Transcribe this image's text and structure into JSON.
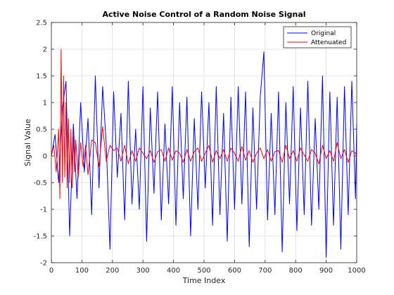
{
  "chart_data": {
    "type": "line",
    "title": "Active Noise Control of a Random Noise Signal",
    "xlabel": "Time Index",
    "ylabel": "Signal Value",
    "xlim": [
      0,
      1000
    ],
    "ylim": [
      -2,
      2.5
    ],
    "grid": true,
    "legend_position": "top-right",
    "x_ticks": [
      0,
      100,
      200,
      300,
      400,
      500,
      600,
      700,
      800,
      900,
      1000
    ],
    "x_tick_labels": [
      "0",
      "100",
      "200",
      "300",
      "400",
      "500",
      "600",
      "700",
      "800",
      "900",
      "1000"
    ],
    "y_ticks": [
      -2,
      -1.5,
      -1,
      -0.5,
      0,
      0.5,
      1,
      1.5,
      2,
      2.5
    ],
    "y_tick_labels": [
      "-2",
      "-1.5",
      "-1",
      "-0.5",
      "0",
      "0.5",
      "1",
      "1.5",
      "2",
      "2.5"
    ],
    "series": [
      {
        "name": "Original",
        "color": "#0000ff",
        "x": [
          0,
          12,
          24,
          36,
          48,
          60,
          72,
          84,
          96,
          108,
          120,
          132,
          144,
          156,
          168,
          180,
          192,
          204,
          216,
          228,
          240,
          252,
          264,
          276,
          288,
          300,
          312,
          324,
          336,
          348,
          360,
          372,
          384,
          396,
          408,
          420,
          432,
          444,
          456,
          468,
          480,
          492,
          504,
          516,
          528,
          540,
          552,
          564,
          576,
          588,
          600,
          612,
          624,
          636,
          648,
          660,
          672,
          684,
          696,
          708,
          720,
          732,
          744,
          756,
          768,
          780,
          792,
          804,
          816,
          828,
          840,
          852,
          864,
          876,
          888,
          900,
          912,
          924,
          936,
          948,
          960,
          972,
          984,
          996,
          1000
        ],
        "y": [
          0.0,
          0.4,
          -0.5,
          0.9,
          1.4,
          -1.5,
          0.6,
          -0.8,
          1.0,
          -0.3,
          0.7,
          -1.1,
          1.5,
          -0.6,
          1.3,
          0.2,
          -1.75,
          1.2,
          -0.4,
          0.8,
          -1.2,
          1.4,
          -0.9,
          0.5,
          -1.0,
          1.3,
          -1.6,
          0.9,
          -0.7,
          1.2,
          -1.2,
          0.6,
          -0.9,
          1.3,
          -1.3,
          1.0,
          -0.8,
          1.1,
          -1.5,
          0.7,
          -1.0,
          1.2,
          -0.6,
          1.0,
          -1.3,
          1.3,
          -1.1,
          0.8,
          -1.6,
          1.1,
          -1.0,
          1.3,
          -0.9,
          1.2,
          -1.7,
          0.9,
          -1.0,
          1.1,
          1.95,
          -1.2,
          0.8,
          -1.1,
          1.2,
          -1.8,
          1.0,
          -0.9,
          1.3,
          -1.4,
          0.9,
          -1.1,
          1.4,
          -1.3,
          0.7,
          -1.0,
          1.5,
          -1.9,
          1.2,
          -1.3,
          1.1,
          -1.75,
          1.3,
          -1.1,
          1.4,
          -0.8,
          0.6
        ]
      },
      {
        "name": "Attenuated",
        "color": "#ff0000",
        "x": [
          0,
          8,
          16,
          24,
          28,
          32,
          36,
          40,
          44,
          48,
          52,
          56,
          60,
          64,
          68,
          72,
          76,
          80,
          88,
          96,
          104,
          112,
          120,
          132,
          144,
          156,
          168,
          180,
          192,
          204,
          216,
          228,
          240,
          252,
          264,
          276,
          288,
          300,
          312,
          324,
          336,
          348,
          360,
          372,
          384,
          396,
          408,
          420,
          432,
          444,
          456,
          468,
          480,
          492,
          504,
          516,
          528,
          540,
          552,
          564,
          576,
          588,
          600,
          612,
          624,
          636,
          648,
          660,
          672,
          684,
          696,
          708,
          720,
          732,
          744,
          756,
          768,
          780,
          792,
          804,
          816,
          828,
          840,
          852,
          864,
          876,
          888,
          900,
          912,
          924,
          936,
          948,
          960,
          972,
          984,
          996,
          1000
        ],
        "y": [
          0.0,
          0.2,
          -0.3,
          0.5,
          -0.8,
          2.0,
          -0.5,
          1.5,
          -0.4,
          1.0,
          -0.6,
          0.7,
          -0.5,
          0.5,
          -0.6,
          0.4,
          -0.3,
          0.3,
          -0.4,
          0.25,
          -0.2,
          0.2,
          -0.35,
          0.3,
          0.25,
          -0.2,
          0.55,
          -0.1,
          0.2,
          0.1,
          0.15,
          -0.1,
          0.2,
          -0.15,
          0.1,
          -0.1,
          0.15,
          0.05,
          -0.05,
          0.1,
          -0.12,
          0.08,
          0.12,
          -0.1,
          0.15,
          -0.08,
          0.1,
          0.05,
          -0.12,
          0.12,
          -0.1,
          0.08,
          0.15,
          -0.1,
          0.05,
          0.2,
          -0.12,
          0.1,
          -0.05,
          0.12,
          -0.1,
          0.15,
          0.05,
          -0.1,
          0.18,
          -0.08,
          0.1,
          -0.12,
          0.05,
          0.15,
          -0.05,
          0.12,
          -0.1,
          0.08,
          0.1,
          -0.12,
          0.2,
          -0.05,
          0.1,
          -0.1,
          0.15,
          0.02,
          -0.1,
          0.12,
          0.05,
          -0.15,
          0.2,
          -0.05,
          0.1,
          -0.1,
          0.25,
          -0.05,
          0.12,
          -0.12,
          0.1,
          0.05,
          0.0
        ]
      }
    ]
  }
}
